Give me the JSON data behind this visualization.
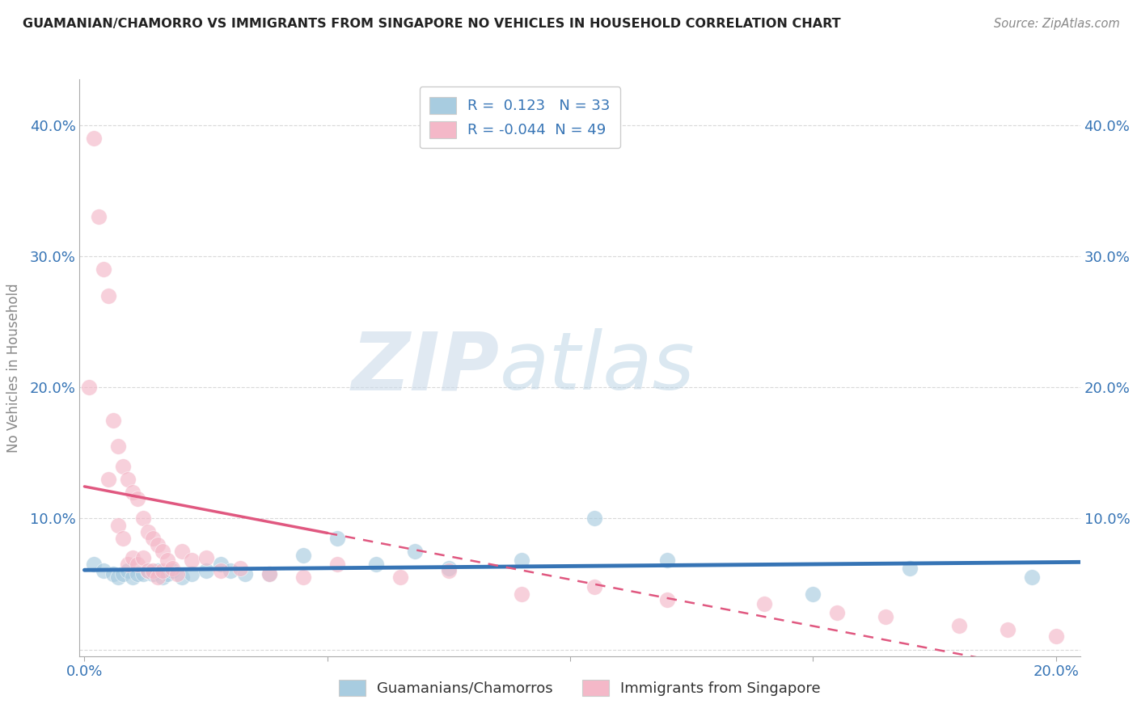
{
  "title": "GUAMANIAN/CHAMORRO VS IMMIGRANTS FROM SINGAPORE NO VEHICLES IN HOUSEHOLD CORRELATION CHART",
  "source": "Source: ZipAtlas.com",
  "xlabel": "",
  "ylabel": "No Vehicles in Household",
  "xlim": [
    -0.001,
    0.205
  ],
  "ylim": [
    -0.005,
    0.435
  ],
  "yticks": [
    0.0,
    0.1,
    0.2,
    0.3,
    0.4
  ],
  "ytick_labels": [
    "",
    "10.0%",
    "20.0%",
    "30.0%",
    "40.0%"
  ],
  "xticks": [
    0.0,
    0.05,
    0.1,
    0.15,
    0.2
  ],
  "xtick_labels": [
    "0.0%",
    "",
    "",
    "",
    "20.0%"
  ],
  "blue_R": 0.123,
  "blue_N": 33,
  "pink_R": -0.044,
  "pink_N": 49,
  "blue_color": "#a8cce0",
  "pink_color": "#f4b8c8",
  "blue_line_color": "#3674b5",
  "pink_line_color": "#e05880",
  "watermark_zip": "ZIP",
  "watermark_atlas": "atlas",
  "blue_scatter_x": [
    0.002,
    0.004,
    0.006,
    0.007,
    0.008,
    0.009,
    0.01,
    0.011,
    0.012,
    0.013,
    0.014,
    0.015,
    0.016,
    0.017,
    0.018,
    0.02,
    0.022,
    0.025,
    0.028,
    0.03,
    0.033,
    0.038,
    0.045,
    0.052,
    0.06,
    0.068,
    0.075,
    0.09,
    0.105,
    0.12,
    0.15,
    0.17,
    0.195
  ],
  "blue_scatter_y": [
    0.065,
    0.06,
    0.058,
    0.055,
    0.058,
    0.06,
    0.055,
    0.058,
    0.058,
    0.06,
    0.058,
    0.06,
    0.055,
    0.058,
    0.06,
    0.055,
    0.058,
    0.06,
    0.065,
    0.06,
    0.058,
    0.058,
    0.072,
    0.085,
    0.065,
    0.075,
    0.062,
    0.068,
    0.1,
    0.068,
    0.042,
    0.062,
    0.055
  ],
  "pink_scatter_x": [
    0.001,
    0.002,
    0.003,
    0.004,
    0.005,
    0.005,
    0.006,
    0.007,
    0.007,
    0.008,
    0.008,
    0.009,
    0.009,
    0.01,
    0.01,
    0.011,
    0.011,
    0.012,
    0.012,
    0.013,
    0.013,
    0.014,
    0.014,
    0.015,
    0.015,
    0.016,
    0.016,
    0.017,
    0.018,
    0.019,
    0.02,
    0.022,
    0.025,
    0.028,
    0.032,
    0.038,
    0.045,
    0.052,
    0.065,
    0.075,
    0.09,
    0.105,
    0.12,
    0.14,
    0.155,
    0.165,
    0.18,
    0.19,
    0.2
  ],
  "pink_scatter_y": [
    0.2,
    0.39,
    0.33,
    0.29,
    0.27,
    0.13,
    0.175,
    0.155,
    0.095,
    0.14,
    0.085,
    0.13,
    0.065,
    0.12,
    0.07,
    0.115,
    0.065,
    0.1,
    0.07,
    0.09,
    0.06,
    0.085,
    0.06,
    0.08,
    0.055,
    0.075,
    0.06,
    0.068,
    0.062,
    0.058,
    0.075,
    0.068,
    0.07,
    0.06,
    0.062,
    0.058,
    0.055,
    0.065,
    0.055,
    0.06,
    0.042,
    0.048,
    0.038,
    0.035,
    0.028,
    0.025,
    0.018,
    0.015,
    0.01
  ]
}
